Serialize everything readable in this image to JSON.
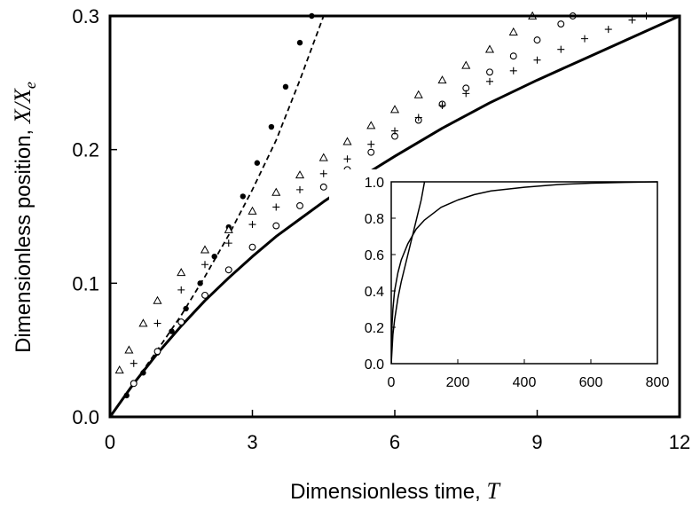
{
  "chart_data": [
    {
      "type": "line",
      "xlabel": "Dimensionless time, ",
      "xlabel_symbol": "T",
      "ylabel": "Dimensionless position, ",
      "ylabel_symbol": "X",
      "ylabel_symbol_sep": "/",
      "ylabel_symbol_2": "X",
      "ylabel_subscript": "e",
      "xlim": [
        0,
        12
      ],
      "ylim": [
        0,
        0.3
      ],
      "xticks": [
        "0",
        "3",
        "6",
        "9",
        "12"
      ],
      "yticks": [
        "0.0",
        "0.1",
        "0.2",
        "0.3"
      ],
      "grid": false,
      "series": [
        {
          "style": "solid-thick",
          "color": "#000000",
          "x": [
            0,
            0.25,
            0.5,
            1,
            1.5,
            2,
            2.5,
            3,
            3.5,
            4,
            4.5,
            5,
            6,
            7,
            8,
            9,
            10,
            11,
            12
          ],
          "y": [
            0,
            0.0125,
            0.025,
            0.0475,
            0.068,
            0.087,
            0.104,
            0.12,
            0.135,
            0.148,
            0.161,
            0.173,
            0.195,
            0.216,
            0.235,
            0.252,
            0.268,
            0.284,
            0.3
          ]
        },
        {
          "style": "dashed",
          "color": "#000000",
          "x": [
            0,
            0.5,
            1,
            1.5,
            2,
            2.5,
            3,
            3.5,
            4,
            4.5
          ],
          "y": [
            0,
            0.025,
            0.05,
            0.076,
            0.105,
            0.136,
            0.17,
            0.207,
            0.252,
            0.3
          ]
        },
        {
          "style": "marker-filled-circle",
          "color": "#000000",
          "x": [
            0,
            0.35,
            0.7,
            1,
            1.3,
            1.6,
            1.9,
            2.2,
            2.5,
            2.8,
            3.1,
            3.4,
            3.7,
            4.0,
            4.25
          ],
          "y": [
            0,
            0.016,
            0.033,
            0.048,
            0.064,
            0.081,
            0.1,
            0.12,
            0.142,
            0.165,
            0.19,
            0.217,
            0.247,
            0.28,
            0.3
          ]
        },
        {
          "style": "marker-open-circle",
          "color": "#000000",
          "x": [
            0,
            0.5,
            1,
            1.5,
            2,
            2.5,
            3,
            3.5,
            4,
            4.5,
            5,
            5.5,
            6,
            6.5,
            7,
            7.5,
            8,
            8.5,
            9,
            9.5,
            9.75
          ],
          "y": [
            0,
            0.025,
            0.049,
            0.071,
            0.091,
            0.11,
            0.127,
            0.143,
            0.158,
            0.172,
            0.185,
            0.198,
            0.21,
            0.222,
            0.234,
            0.246,
            0.258,
            0.27,
            0.282,
            0.294,
            0.3
          ]
        },
        {
          "style": "marker-triangle",
          "color": "#000000",
          "x": [
            0,
            0.2,
            0.4,
            0.7,
            1,
            1.5,
            2,
            2.5,
            3,
            3.5,
            4,
            4.5,
            5,
            5.5,
            6,
            6.5,
            7,
            7.5,
            8,
            8.5,
            8.9
          ],
          "y": [
            0,
            0.035,
            0.05,
            0.07,
            0.087,
            0.108,
            0.125,
            0.14,
            0.154,
            0.168,
            0.181,
            0.194,
            0.206,
            0.218,
            0.23,
            0.241,
            0.252,
            0.263,
            0.275,
            0.288,
            0.3
          ]
        },
        {
          "style": "marker-plus",
          "color": "#000000",
          "x": [
            0,
            0.5,
            1,
            1.5,
            2,
            2.5,
            3,
            3.5,
            4,
            4.5,
            5,
            5.5,
            6,
            6.5,
            7,
            7.5,
            8,
            8.5,
            9,
            9.5,
            10,
            10.5,
            11,
            11.3
          ],
          "y": [
            0,
            0.04,
            0.07,
            0.095,
            0.114,
            0.13,
            0.144,
            0.157,
            0.17,
            0.182,
            0.193,
            0.204,
            0.214,
            0.224,
            0.233,
            0.242,
            0.251,
            0.259,
            0.267,
            0.275,
            0.283,
            0.29,
            0.297,
            0.3
          ]
        }
      ]
    },
    {
      "type": "line",
      "xlim": [
        0,
        800
      ],
      "ylim": [
        0,
        1.0
      ],
      "xticks": [
        "0",
        "200",
        "400",
        "600",
        "800"
      ],
      "yticks": [
        "0.0",
        "0.2",
        "0.4",
        "0.6",
        "0.8",
        "1.0"
      ],
      "grid": false,
      "series": [
        {
          "style": "solid",
          "color": "#000000",
          "x": [
            0,
            2,
            5,
            10,
            20,
            30,
            50,
            75,
            100,
            150,
            200,
            250,
            300,
            400,
            500,
            600,
            700,
            800
          ],
          "y": [
            0,
            0.2,
            0.3,
            0.4,
            0.5,
            0.57,
            0.66,
            0.74,
            0.79,
            0.86,
            0.9,
            0.93,
            0.95,
            0.97,
            0.985,
            0.993,
            0.997,
            1.0
          ]
        },
        {
          "style": "solid",
          "color": "#000000",
          "x": [
            0,
            5,
            10,
            20,
            30,
            50,
            70,
            90,
            100
          ],
          "y": [
            0,
            0.16,
            0.24,
            0.36,
            0.45,
            0.6,
            0.75,
            0.9,
            1.0
          ]
        }
      ]
    }
  ]
}
